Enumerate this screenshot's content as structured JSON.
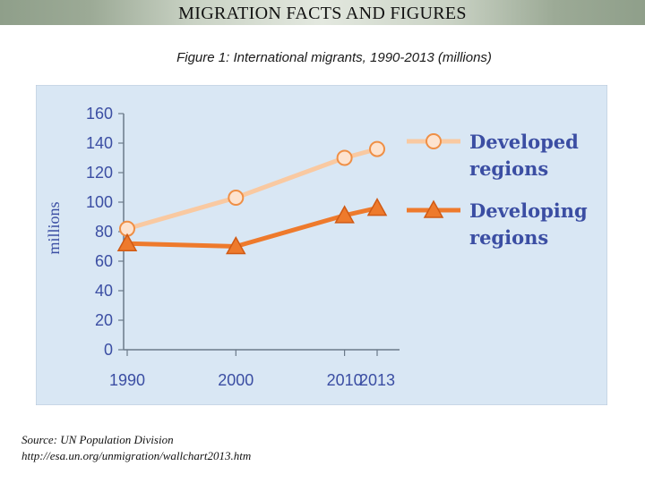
{
  "header": {
    "title": "MIGRATION FACTS AND FIGURES"
  },
  "source": {
    "line1": "Source: UN Population Division",
    "line2": "http://esa.un.org/unmigration/wallchart2013.htm"
  },
  "chart_data": {
    "type": "line",
    "title": "Figure 1: International migrants, 1990-2013 (millions)",
    "xlabel": "",
    "ylabel": "millions",
    "x": [
      1990,
      2000,
      2010,
      2013
    ],
    "xticks": [
      1990,
      2000,
      2010,
      2013
    ],
    "yticks": [
      0,
      20,
      40,
      60,
      80,
      100,
      120,
      140,
      160
    ],
    "xlim": [
      1990,
      2013
    ],
    "ylim": [
      0,
      160
    ],
    "grid": false,
    "legend": "right",
    "series": [
      {
        "name": "Developed regions",
        "legend_lines": [
          "Developed",
          "regions"
        ],
        "values": [
          82,
          103,
          130,
          136
        ],
        "color": "#f9c9a1",
        "marker": "circle"
      },
      {
        "name": "Developing regions",
        "legend_lines": [
          "Developing",
          "regions"
        ],
        "values": [
          72,
          70,
          91,
          96
        ],
        "color": "#ee7a2c",
        "marker": "triangle"
      }
    ]
  }
}
